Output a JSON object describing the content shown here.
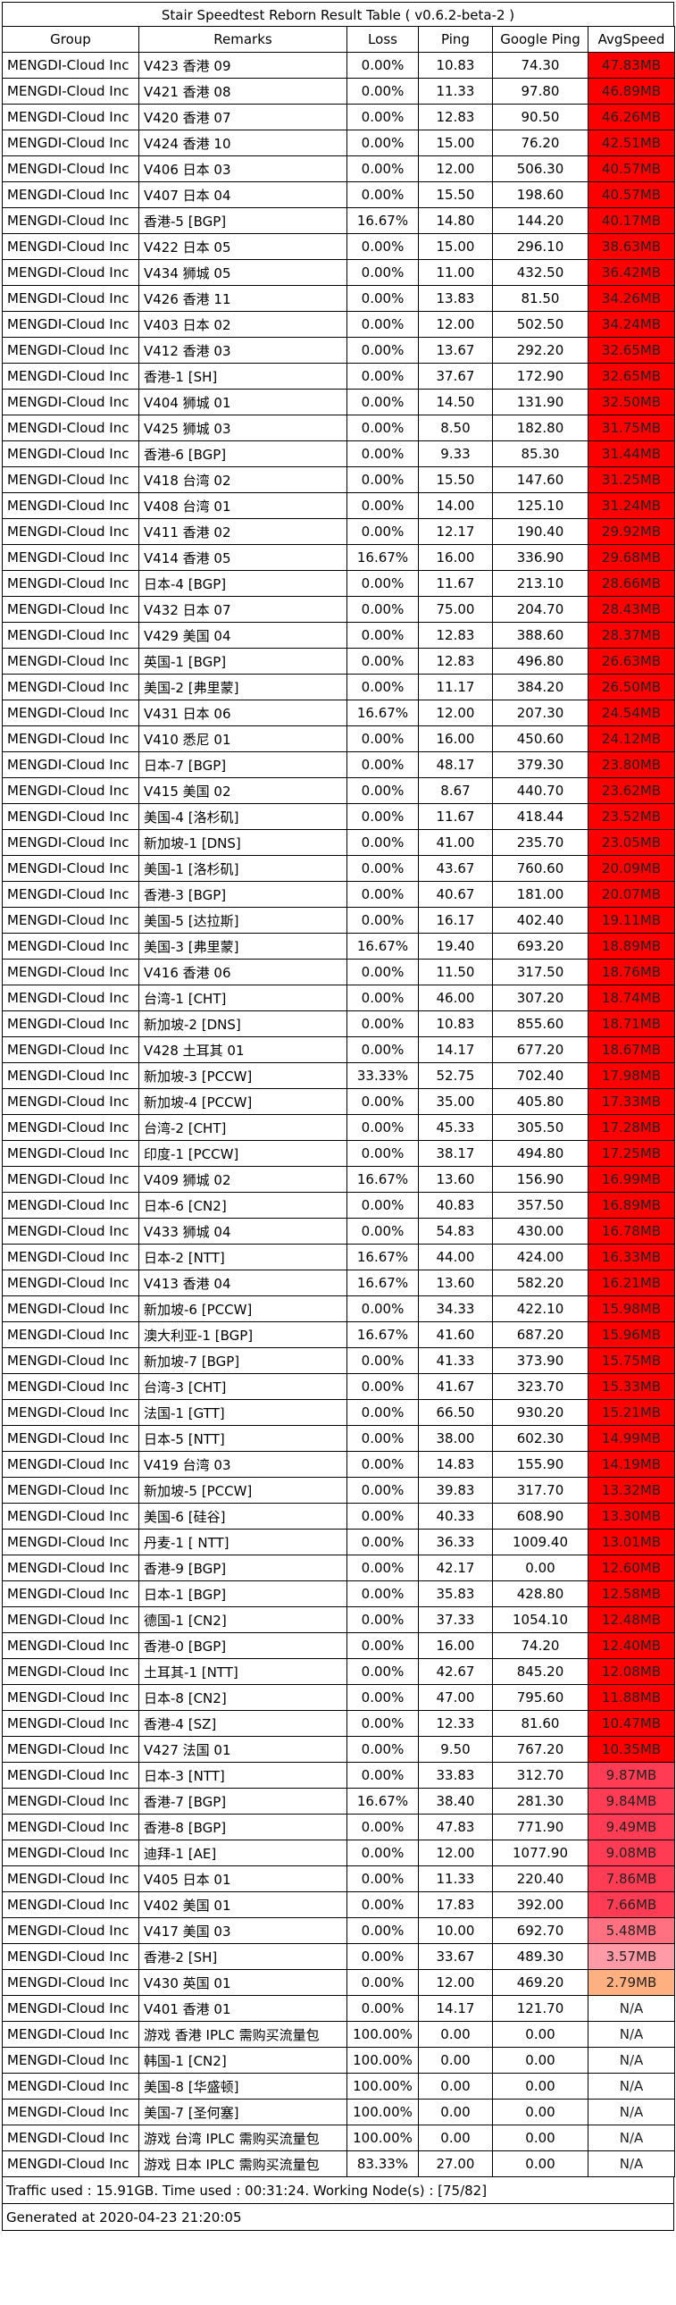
{
  "title": "Stair Speedtest Reborn Result Table ( v0.6.2-beta-2 )",
  "columns": [
    "Group",
    "Remarks",
    "Loss",
    "Ping",
    "Google Ping",
    "AvgSpeed"
  ],
  "speed_colors": {
    "high": "#ff0000",
    "mid": "#ff3c54",
    "low": "#ff7080",
    "lowest": "#ff9aa6",
    "very_low": "#ffb080",
    "none": "#ffffff"
  },
  "rows": [
    [
      "MENGDI-Cloud Inc",
      "V423 香港 09",
      "0.00%",
      "10.83",
      "74.30",
      "47.83MB",
      "high"
    ],
    [
      "MENGDI-Cloud Inc",
      "V421 香港 08",
      "0.00%",
      "11.33",
      "97.80",
      "46.89MB",
      "high"
    ],
    [
      "MENGDI-Cloud Inc",
      "V420 香港 07",
      "0.00%",
      "12.83",
      "90.50",
      "46.26MB",
      "high"
    ],
    [
      "MENGDI-Cloud Inc",
      "V424 香港 10",
      "0.00%",
      "15.00",
      "76.20",
      "42.51MB",
      "high"
    ],
    [
      "MENGDI-Cloud Inc",
      "V406 日本 03",
      "0.00%",
      "12.00",
      "506.30",
      "40.57MB",
      "high"
    ],
    [
      "MENGDI-Cloud Inc",
      "V407 日本 04",
      "0.00%",
      "15.50",
      "198.60",
      "40.57MB",
      "high"
    ],
    [
      "MENGDI-Cloud Inc",
      "香港-5 [BGP]",
      "16.67%",
      "14.80",
      "144.20",
      "40.17MB",
      "high"
    ],
    [
      "MENGDI-Cloud Inc",
      "V422 日本 05",
      "0.00%",
      "15.00",
      "296.10",
      "38.63MB",
      "high"
    ],
    [
      "MENGDI-Cloud Inc",
      "V434 狮城 05",
      "0.00%",
      "11.00",
      "432.50",
      "36.42MB",
      "high"
    ],
    [
      "MENGDI-Cloud Inc",
      "V426 香港 11",
      "0.00%",
      "13.83",
      "81.50",
      "34.26MB",
      "high"
    ],
    [
      "MENGDI-Cloud Inc",
      "V403 日本 02",
      "0.00%",
      "12.00",
      "502.50",
      "34.24MB",
      "high"
    ],
    [
      "MENGDI-Cloud Inc",
      "V412 香港 03",
      "0.00%",
      "13.67",
      "292.20",
      "32.65MB",
      "high"
    ],
    [
      "MENGDI-Cloud Inc",
      "香港-1 [SH]",
      "0.00%",
      "37.67",
      "172.90",
      "32.65MB",
      "high"
    ],
    [
      "MENGDI-Cloud Inc",
      "V404 狮城 01",
      "0.00%",
      "14.50",
      "131.90",
      "32.50MB",
      "high"
    ],
    [
      "MENGDI-Cloud Inc",
      "V425 狮城 03",
      "0.00%",
      "8.50",
      "182.80",
      "31.75MB",
      "high"
    ],
    [
      "MENGDI-Cloud Inc",
      "香港-6 [BGP]",
      "0.00%",
      "9.33",
      "85.30",
      "31.44MB",
      "high"
    ],
    [
      "MENGDI-Cloud Inc",
      "V418 台湾 02",
      "0.00%",
      "15.50",
      "147.60",
      "31.25MB",
      "high"
    ],
    [
      "MENGDI-Cloud Inc",
      "V408 台湾 01",
      "0.00%",
      "14.00",
      "125.10",
      "31.24MB",
      "high"
    ],
    [
      "MENGDI-Cloud Inc",
      "V411 香港 02",
      "0.00%",
      "12.17",
      "190.40",
      "29.92MB",
      "high"
    ],
    [
      "MENGDI-Cloud Inc",
      "V414 香港 05",
      "16.67%",
      "16.00",
      "336.90",
      "29.68MB",
      "high"
    ],
    [
      "MENGDI-Cloud Inc",
      "日本-4 [BGP]",
      "0.00%",
      "11.67",
      "213.10",
      "28.66MB",
      "high"
    ],
    [
      "MENGDI-Cloud Inc",
      "V432 日本 07",
      "0.00%",
      "75.00",
      "204.70",
      "28.43MB",
      "high"
    ],
    [
      "MENGDI-Cloud Inc",
      "V429 美国 04",
      "0.00%",
      "12.83",
      "388.60",
      "28.37MB",
      "high"
    ],
    [
      "MENGDI-Cloud Inc",
      "英国-1 [BGP]",
      "0.00%",
      "12.83",
      "496.80",
      "26.63MB",
      "high"
    ],
    [
      "MENGDI-Cloud Inc",
      "美国-2 [弗里蒙]",
      "0.00%",
      "11.17",
      "384.20",
      "26.50MB",
      "high"
    ],
    [
      "MENGDI-Cloud Inc",
      "V431 日本 06",
      "16.67%",
      "12.00",
      "207.30",
      "24.54MB",
      "high"
    ],
    [
      "MENGDI-Cloud Inc",
      "V410 悉尼 01",
      "0.00%",
      "16.00",
      "450.60",
      "24.12MB",
      "high"
    ],
    [
      "MENGDI-Cloud Inc",
      "日本-7 [BGP]",
      "0.00%",
      "48.17",
      "379.30",
      "23.80MB",
      "high"
    ],
    [
      "MENGDI-Cloud Inc",
      "V415 美国 02",
      "0.00%",
      "8.67",
      "440.70",
      "23.62MB",
      "high"
    ],
    [
      "MENGDI-Cloud Inc",
      "美国-4 [洛杉矶]",
      "0.00%",
      "11.67",
      "418.44",
      "23.52MB",
      "high"
    ],
    [
      "MENGDI-Cloud Inc",
      "新加坡-1 [DNS]",
      "0.00%",
      "41.00",
      "235.70",
      "23.05MB",
      "high"
    ],
    [
      "MENGDI-Cloud Inc",
      "美国-1 [洛杉矶]",
      "0.00%",
      "43.67",
      "760.60",
      "20.09MB",
      "high"
    ],
    [
      "MENGDI-Cloud Inc",
      "香港-3 [BGP]",
      "0.00%",
      "40.67",
      "181.00",
      "20.07MB",
      "high"
    ],
    [
      "MENGDI-Cloud Inc",
      "美国-5 [达拉斯]",
      "0.00%",
      "16.17",
      "402.40",
      "19.11MB",
      "high"
    ],
    [
      "MENGDI-Cloud Inc",
      "美国-3 [弗里蒙]",
      "16.67%",
      "19.40",
      "693.20",
      "18.89MB",
      "high"
    ],
    [
      "MENGDI-Cloud Inc",
      "V416 香港 06",
      "0.00%",
      "11.50",
      "317.50",
      "18.76MB",
      "high"
    ],
    [
      "MENGDI-Cloud Inc",
      "台湾-1 [CHT]",
      "0.00%",
      "46.00",
      "307.20",
      "18.74MB",
      "high"
    ],
    [
      "MENGDI-Cloud Inc",
      "新加坡-2 [DNS]",
      "0.00%",
      "10.83",
      "855.60",
      "18.71MB",
      "high"
    ],
    [
      "MENGDI-Cloud Inc",
      "V428 土耳其 01",
      "0.00%",
      "14.17",
      "677.20",
      "18.67MB",
      "high"
    ],
    [
      "MENGDI-Cloud Inc",
      "新加坡-3 [PCCW]",
      "33.33%",
      "52.75",
      "702.40",
      "17.98MB",
      "high"
    ],
    [
      "MENGDI-Cloud Inc",
      "新加坡-4 [PCCW]",
      "0.00%",
      "35.00",
      "405.80",
      "17.33MB",
      "high"
    ],
    [
      "MENGDI-Cloud Inc",
      "台湾-2 [CHT]",
      "0.00%",
      "45.33",
      "305.50",
      "17.28MB",
      "high"
    ],
    [
      "MENGDI-Cloud Inc",
      "印度-1 [PCCW]",
      "0.00%",
      "38.17",
      "494.80",
      "17.25MB",
      "high"
    ],
    [
      "MENGDI-Cloud Inc",
      "V409 狮城 02",
      "16.67%",
      "13.60",
      "156.90",
      "16.99MB",
      "high"
    ],
    [
      "MENGDI-Cloud Inc",
      "日本-6 [CN2]",
      "0.00%",
      "40.83",
      "357.50",
      "16.89MB",
      "high"
    ],
    [
      "MENGDI-Cloud Inc",
      "V433 狮城 04",
      "0.00%",
      "54.83",
      "430.00",
      "16.78MB",
      "high"
    ],
    [
      "MENGDI-Cloud Inc",
      "日本-2 [NTT]",
      "16.67%",
      "44.00",
      "424.00",
      "16.33MB",
      "high"
    ],
    [
      "MENGDI-Cloud Inc",
      "V413 香港 04",
      "16.67%",
      "13.60",
      "582.20",
      "16.21MB",
      "high"
    ],
    [
      "MENGDI-Cloud Inc",
      "新加坡-6 [PCCW]",
      "0.00%",
      "34.33",
      "422.10",
      "15.98MB",
      "high"
    ],
    [
      "MENGDI-Cloud Inc",
      "澳大利亚-1 [BGP]",
      "16.67%",
      "41.60",
      "687.20",
      "15.96MB",
      "high"
    ],
    [
      "MENGDI-Cloud Inc",
      "新加坡-7 [BGP]",
      "0.00%",
      "41.33",
      "373.90",
      "15.75MB",
      "high"
    ],
    [
      "MENGDI-Cloud Inc",
      "台湾-3 [CHT]",
      "0.00%",
      "41.67",
      "323.70",
      "15.33MB",
      "high"
    ],
    [
      "MENGDI-Cloud Inc",
      "法国-1 [GTT]",
      "0.00%",
      "66.50",
      "930.20",
      "15.21MB",
      "high"
    ],
    [
      "MENGDI-Cloud Inc",
      "日本-5 [NTT]",
      "0.00%",
      "38.00",
      "602.30",
      "14.99MB",
      "high"
    ],
    [
      "MENGDI-Cloud Inc",
      "V419 台湾 03",
      "0.00%",
      "14.83",
      "155.90",
      "14.19MB",
      "high"
    ],
    [
      "MENGDI-Cloud Inc",
      "新加坡-5 [PCCW]",
      "0.00%",
      "39.83",
      "317.70",
      "13.32MB",
      "high"
    ],
    [
      "MENGDI-Cloud Inc",
      "美国-6 [硅谷]",
      "0.00%",
      "40.33",
      "608.90",
      "13.30MB",
      "high"
    ],
    [
      "MENGDI-Cloud Inc",
      "丹麦-1 [ NTT]",
      "0.00%",
      "36.33",
      "1009.40",
      "13.01MB",
      "high"
    ],
    [
      "MENGDI-Cloud Inc",
      "香港-9 [BGP]",
      "0.00%",
      "42.17",
      "0.00",
      "12.60MB",
      "high"
    ],
    [
      "MENGDI-Cloud Inc",
      "日本-1 [BGP]",
      "0.00%",
      "35.83",
      "428.80",
      "12.58MB",
      "high"
    ],
    [
      "MENGDI-Cloud Inc",
      "德国-1 [CN2]",
      "0.00%",
      "37.33",
      "1054.10",
      "12.48MB",
      "high"
    ],
    [
      "MENGDI-Cloud Inc",
      "香港-0 [BGP]",
      "0.00%",
      "16.00",
      "74.20",
      "12.40MB",
      "high"
    ],
    [
      "MENGDI-Cloud Inc",
      "土耳其-1 [NTT]",
      "0.00%",
      "42.67",
      "845.20",
      "12.08MB",
      "high"
    ],
    [
      "MENGDI-Cloud Inc",
      "日本-8 [CN2]",
      "0.00%",
      "47.00",
      "795.60",
      "11.88MB",
      "high"
    ],
    [
      "MENGDI-Cloud Inc",
      "香港-4 [SZ]",
      "0.00%",
      "12.33",
      "81.60",
      "10.47MB",
      "high"
    ],
    [
      "MENGDI-Cloud Inc",
      "V427 法国 01",
      "0.00%",
      "9.50",
      "767.20",
      "10.35MB",
      "high"
    ],
    [
      "MENGDI-Cloud Inc",
      "日本-3 [NTT]",
      "0.00%",
      "33.83",
      "312.70",
      "9.87MB",
      "mid"
    ],
    [
      "MENGDI-Cloud Inc",
      "香港-7 [BGP]",
      "16.67%",
      "38.40",
      "281.30",
      "9.84MB",
      "mid"
    ],
    [
      "MENGDI-Cloud Inc",
      "香港-8 [BGP]",
      "0.00%",
      "47.83",
      "771.90",
      "9.49MB",
      "mid"
    ],
    [
      "MENGDI-Cloud Inc",
      "迪拜-1 [AE]",
      "0.00%",
      "12.00",
      "1077.90",
      "9.08MB",
      "mid"
    ],
    [
      "MENGDI-Cloud Inc",
      "V405 日本 01",
      "0.00%",
      "11.33",
      "220.40",
      "7.86MB",
      "mid"
    ],
    [
      "MENGDI-Cloud Inc",
      "V402 美国 01",
      "0.00%",
      "17.83",
      "392.00",
      "7.66MB",
      "mid"
    ],
    [
      "MENGDI-Cloud Inc",
      "V417 美国 03",
      "0.00%",
      "10.00",
      "692.70",
      "5.48MB",
      "low"
    ],
    [
      "MENGDI-Cloud Inc",
      "香港-2 [SH]",
      "0.00%",
      "33.67",
      "489.30",
      "3.57MB",
      "lowest"
    ],
    [
      "MENGDI-Cloud Inc",
      "V430 英国 01",
      "0.00%",
      "12.00",
      "469.20",
      "2.79MB",
      "very_low"
    ],
    [
      "MENGDI-Cloud Inc",
      "V401 香港 01",
      "0.00%",
      "14.17",
      "121.70",
      "N/A",
      "none"
    ],
    [
      "MENGDI-Cloud Inc",
      "游戏 香港 IPLC 需购买流量包",
      "100.00%",
      "0.00",
      "0.00",
      "N/A",
      "none"
    ],
    [
      "MENGDI-Cloud Inc",
      "韩国-1 [CN2]",
      "100.00%",
      "0.00",
      "0.00",
      "N/A",
      "none"
    ],
    [
      "MENGDI-Cloud Inc",
      "美国-8 [华盛顿]",
      "100.00%",
      "0.00",
      "0.00",
      "N/A",
      "none"
    ],
    [
      "MENGDI-Cloud Inc",
      "美国-7 [圣何塞]",
      "100.00%",
      "0.00",
      "0.00",
      "N/A",
      "none"
    ],
    [
      "MENGDI-Cloud Inc",
      "游戏 台湾 IPLC 需购买流量包",
      "100.00%",
      "0.00",
      "0.00",
      "N/A",
      "none"
    ],
    [
      "MENGDI-Cloud Inc",
      "游戏 日本 IPLC 需购买流量包",
      "83.33%",
      "27.00",
      "0.00",
      "N/A",
      "none"
    ]
  ],
  "footer": {
    "traffic": "Traffic used : 15.91GB. Time used : 00:31:24. Working Node(s) : [75/82]",
    "generated": "Generated at 2020-04-23 21:20:05"
  }
}
